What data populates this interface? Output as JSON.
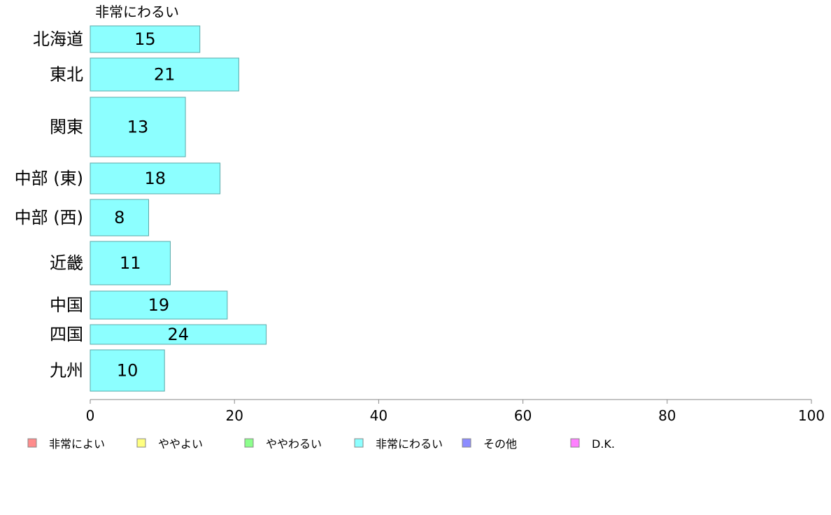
{
  "chart_data": {
    "type": "bar",
    "orientation": "horizontal",
    "series_title": "非常にわるい",
    "categories": [
      "北海道",
      "東北",
      "関東",
      "中部 (東)",
      "中部 (西)",
      "近畿",
      "中国",
      "四国",
      "九州"
    ],
    "values": [
      15.2,
      20.6,
      13.2,
      18.0,
      8.1,
      11.1,
      19.0,
      24.4,
      10.3
    ],
    "value_labels": [
      "15",
      "21",
      "13",
      "18",
      "8",
      "11",
      "19",
      "24",
      "10"
    ],
    "xlim": [
      0,
      100
    ],
    "xticks": [
      0,
      20,
      40,
      60,
      80,
      100
    ],
    "xtick_labels": [
      "0",
      "20",
      "40",
      "60",
      "80",
      "100"
    ],
    "grid": false,
    "legend_position": "bottom",
    "legend": [
      {
        "name": "非常によい",
        "color": "#ff8c8c"
      },
      {
        "name": "ややよい",
        "color": "#ffff80"
      },
      {
        "name": "ややわるい",
        "color": "#8cff8c"
      },
      {
        "name": "非常にわるい",
        "color": "#8cffff"
      },
      {
        "name": "その他",
        "color": "#8c8cff"
      },
      {
        "name": "D.K.",
        "color": "#ff80ff"
      }
    ],
    "bar_color": "#8cffff",
    "bar_stroke": "#5aa8a8",
    "axis_color": "#888888"
  }
}
